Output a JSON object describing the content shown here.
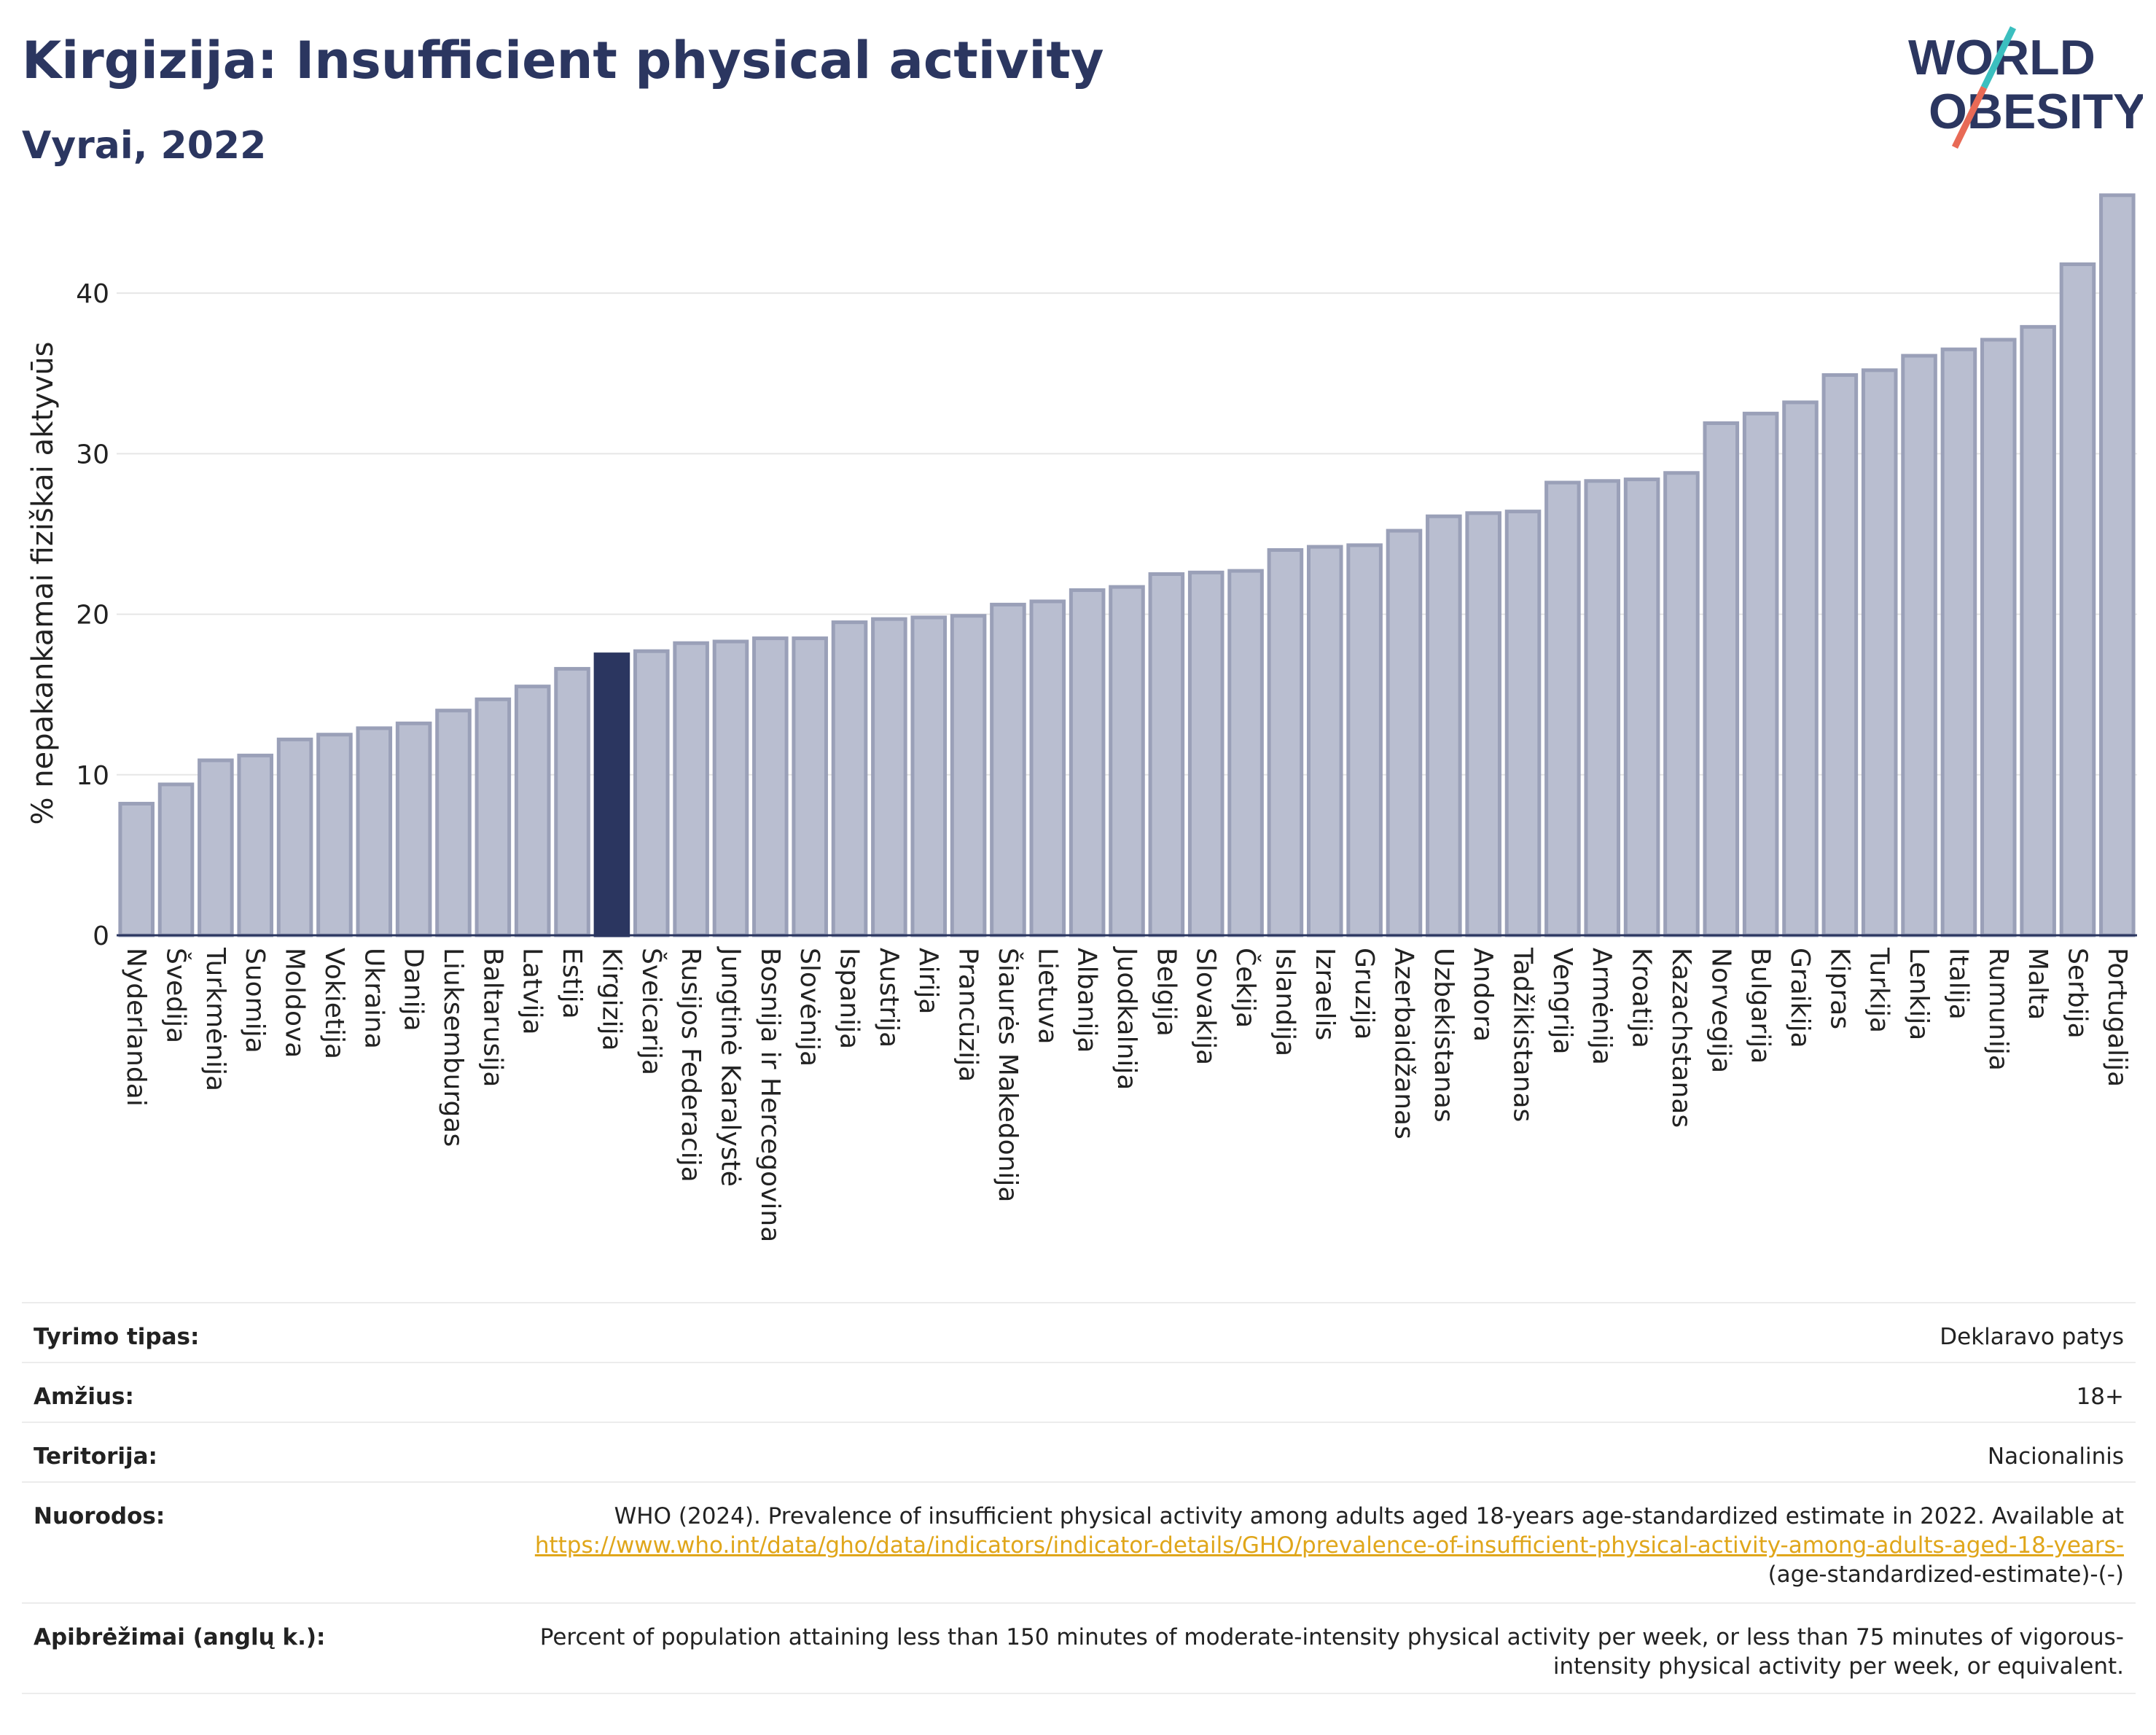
{
  "header": {
    "title": "Kirgizija: Insufficient physical activity",
    "subtitle": "Vyrai, 2022",
    "logo_line1": "WORLD",
    "logo_line2": "OBESITY"
  },
  "colors": {
    "accent": "#2b3660",
    "bar": "#b9bed0",
    "bar_border": "#9aa0b8",
    "highlight": "#2b3660",
    "link": "#e0a61a"
  },
  "chart_data": {
    "type": "bar",
    "ylabel": "% nepakankamai fiziškai aktyvūs",
    "ylim": [
      0,
      46
    ],
    "yticks": [
      0,
      10,
      20,
      30,
      40
    ],
    "grid": true,
    "highlight": "Kirgizija",
    "categories": [
      "Nyderlandai",
      "Švedija",
      "Turkmėnija",
      "Suomija",
      "Moldova",
      "Vokietija",
      "Ukraina",
      "Danija",
      "Liuksemburgas",
      "Baltarusija",
      "Latvija",
      "Estija",
      "Kirgizija",
      "Šveicarija",
      "Rusijos Federacija",
      "Jungtinė Karalystė",
      "Bosnija ir Hercegovina",
      "Slovėnija",
      "Ispanija",
      "Austrija",
      "Airija",
      "Prancūzija",
      "Šiaurės Makedonija",
      "Lietuva",
      "Albanija",
      "Juodkalnija",
      "Belgija",
      "Slovakija",
      "Čekija",
      "Islandija",
      "Izraelis",
      "Gruzija",
      "Azerbaidžanas",
      "Uzbekistanas",
      "Andora",
      "Tadžikistanas",
      "Vengrija",
      "Armėnija",
      "Kroatija",
      "Kazachstanas",
      "Norvegija",
      "Bulgarija",
      "Graikija",
      "Kipras",
      "Turkija",
      "Lenkija",
      "Italija",
      "Rumunija",
      "Malta",
      "Serbija",
      "Portugalija"
    ],
    "values": [
      8.2,
      9.4,
      10.9,
      11.2,
      12.2,
      12.5,
      12.9,
      13.2,
      14.0,
      14.7,
      15.5,
      16.6,
      17.5,
      17.7,
      18.2,
      18.3,
      18.5,
      18.5,
      19.5,
      19.7,
      19.8,
      19.9,
      20.6,
      20.8,
      21.5,
      21.7,
      22.5,
      22.6,
      22.7,
      24.0,
      24.2,
      24.3,
      25.2,
      26.1,
      26.3,
      26.4,
      28.2,
      28.3,
      28.4,
      28.8,
      31.9,
      32.5,
      33.2,
      34.9,
      35.2,
      36.1,
      36.5,
      37.1,
      37.9,
      41.8,
      46.1
    ]
  },
  "info": {
    "survey_label": "Tyrimo tipas:",
    "survey_value": "Deklaravo patys",
    "age_label": "Amžius:",
    "age_value": "18+",
    "territory_label": "Teritorija:",
    "territory_value": "Nacionalinis",
    "refs_label": "Nuorodos:",
    "refs_text": "WHO (2024). Prevalence of insufficient physical activity among adults aged 18-years age-standardized estimate in 2022. Available at",
    "refs_link": "https://www.who.int/data/gho/data/indicators/indicator-details/GHO/prevalence-of-insufficient-physical-activity-among-adults-aged-18-years-",
    "refs_tail": "(age-standardized-estimate)-(-)",
    "def_label": "Apibrėžimai (anglų k.):",
    "def_value": "Percent of population attaining less than 150 minutes of moderate-intensity physical activity per week, or less than 75 minutes of vigorous-intensity physical activity per week, or equivalent."
  }
}
